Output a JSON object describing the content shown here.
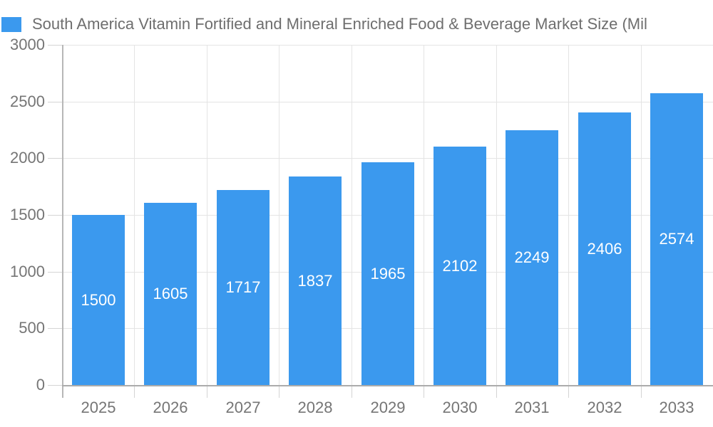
{
  "legend": {
    "swatch_color": "#3b99ee"
  },
  "chart_data": {
    "type": "bar",
    "title": "South America Vitamin Fortified and Mineral Enriched Food & Beverage Market Size (Mil",
    "categories": [
      "2025",
      "2026",
      "2027",
      "2028",
      "2029",
      "2030",
      "2031",
      "2032",
      "2033"
    ],
    "values": [
      1500,
      1605,
      1717,
      1837,
      1965,
      2102,
      2249,
      2406,
      2574
    ],
    "xlabel": "",
    "ylabel": "",
    "ylim": [
      0,
      3000
    ],
    "yticks": [
      0,
      500,
      1000,
      1500,
      2000,
      2500,
      3000
    ],
    "grid": true,
    "legend_position": "top-left",
    "bar_color": "#3b99ee",
    "value_label_color": "#ffffff",
    "axis_text_color": "#757575"
  }
}
